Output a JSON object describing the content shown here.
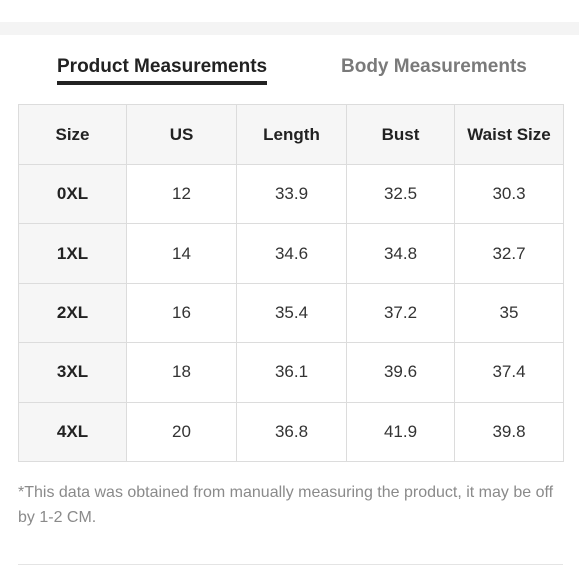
{
  "tabs": [
    {
      "label": "Product Measurements",
      "active": true
    },
    {
      "label": "Body Measurements",
      "active": false
    }
  ],
  "table": {
    "headers": [
      "Size",
      "US",
      "Length",
      "Bust",
      "Waist Size"
    ],
    "rows": [
      [
        "0XL",
        "12",
        "33.9",
        "32.5",
        "30.3"
      ],
      [
        "1XL",
        "14",
        "34.6",
        "34.8",
        "32.7"
      ],
      [
        "2XL",
        "16",
        "35.4",
        "37.2",
        "35"
      ],
      [
        "3XL",
        "18",
        "36.1",
        "39.6",
        "37.4"
      ],
      [
        "4XL",
        "20",
        "36.8",
        "41.9",
        "39.8"
      ]
    ]
  },
  "note": "*This data was obtained from manually measuring the product, it may be off by 1-2 CM.",
  "colors": {
    "active_tab": "#222222",
    "inactive_tab": "#7a7a7a",
    "header_bg": "#f6f6f6",
    "border": "#dcdcdc",
    "note_text": "#8a8a8a"
  }
}
